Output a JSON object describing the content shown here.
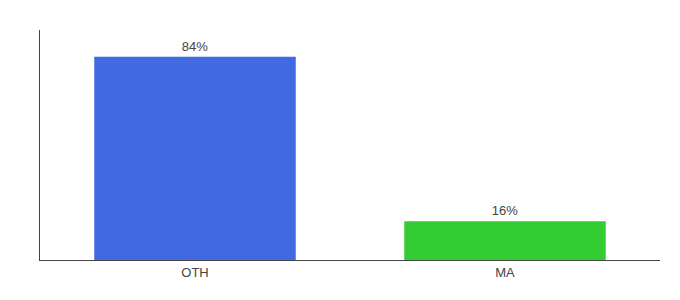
{
  "chart_data": {
    "type": "bar",
    "categories": [
      "OTH",
      "MA"
    ],
    "values": [
      84,
      16
    ],
    "value_labels": [
      "84%",
      "16%"
    ],
    "colors": [
      "#4169e1",
      "#33cc33"
    ],
    "ylim": [
      0,
      95
    ],
    "data_labels": true,
    "tick_labels": "x",
    "grid": false
  }
}
